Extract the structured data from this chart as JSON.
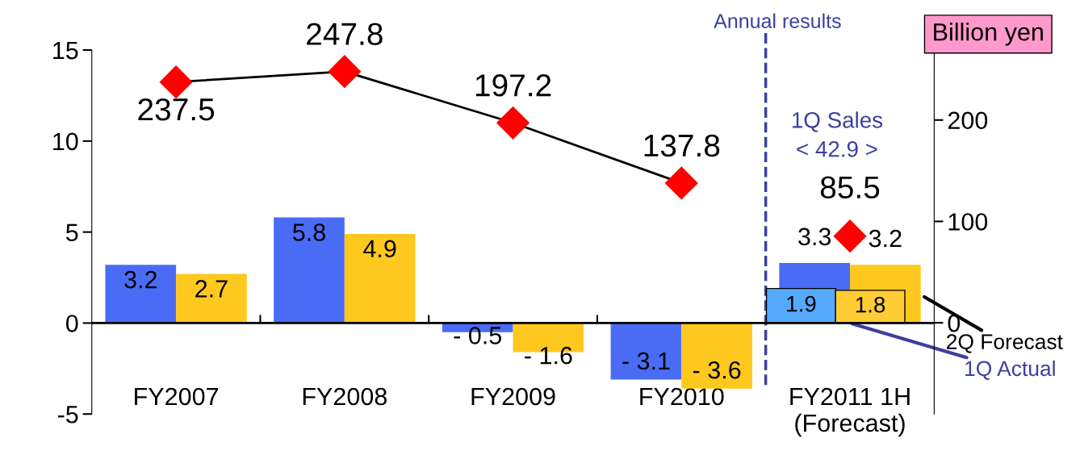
{
  "chart_data": {
    "type": "bar",
    "categories": [
      "FY2007",
      "FY2008",
      "FY2009",
      "FY2010",
      "FY2011 1H\n(Forecast)"
    ],
    "series": [
      {
        "color": "#4a6cf5",
        "values": [
          3.2,
          5.8,
          -0.5,
          -3.1,
          3.3
        ],
        "value_labels": [
          "3.2",
          "5.8",
          "- 0.5",
          "- 3.1",
          "3.3"
        ]
      },
      {
        "color": "#ffc81e",
        "values": [
          2.7,
          4.9,
          -1.6,
          -3.6,
          3.2
        ],
        "value_labels": [
          "2.7",
          "4.9",
          "- 1.6",
          "- 3.6",
          "3.2"
        ]
      },
      {
        "type": "bar",
        "color": "#55aaff",
        "values": [
          null,
          null,
          null,
          null,
          1.9
        ],
        "value_labels": [
          null,
          null,
          null,
          null,
          "1.9"
        ]
      },
      {
        "type": "bar",
        "color": "#ffcc33",
        "values": [
          null,
          null,
          null,
          null,
          1.8
        ],
        "value_labels": [
          null,
          null,
          null,
          null,
          "1.8"
        ]
      },
      {
        "type": "line",
        "axis": "y2",
        "color": "#ff0000",
        "marker": "diamond",
        "values": [
          237.5,
          247.8,
          197.2,
          137.8,
          null
        ],
        "value_labels": [
          "237.5",
          "247.8",
          "197.2",
          "137.8",
          null
        ]
      },
      {
        "type": "scatter",
        "axis": "y2",
        "color": "#ff0000",
        "marker": "diamond",
        "values": [
          null,
          null,
          null,
          null,
          85.5
        ],
        "value_labels": [
          null,
          null,
          null,
          null,
          "85.5"
        ]
      }
    ],
    "ylim": [
      -5,
      15
    ],
    "yticks": [
      -5,
      0,
      5,
      10,
      15
    ],
    "y2lim": [
      -90,
      269
    ],
    "y2ticks": [
      0,
      100,
      200
    ],
    "y2label": "Billion yen",
    "ref_lines": [
      {
        "axis": "x",
        "value": "FY2011 1H\n(Forecast)",
        "color": "#3d3fa0",
        "line_style": "dashed"
      }
    ],
    "annotations": [
      "Annual results",
      "1Q Sales\n< 42.9 >",
      "2Q Forecast",
      {
        "text": "1Q Actual",
        "x": "FY2011 1H\n(Forecast)",
        "y": 0
      }
    ],
    "grid": false,
    "legend": false
  }
}
